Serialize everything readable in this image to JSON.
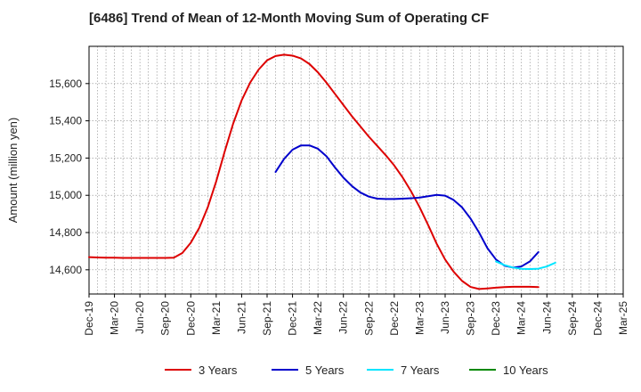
{
  "chart_data": {
    "type": "line",
    "title": "[6486]  Trend of Mean of 12-Month Moving Sum of Operating CF",
    "xlabel": "",
    "ylabel": "Amount (million yen)",
    "ylim": [
      14470,
      15800
    ],
    "y_ticks": [
      14600,
      14800,
      15000,
      15200,
      15400,
      15600
    ],
    "y_tick_labels": [
      "14,600",
      "14,800",
      "15,000",
      "15,200",
      "15,400",
      "15,600"
    ],
    "x_tick_labels": [
      "Dec-19",
      "Mar-20",
      "Jun-20",
      "Sep-20",
      "Dec-20",
      "Mar-21",
      "Jun-21",
      "Sep-21",
      "Dec-21",
      "Mar-22",
      "Jun-22",
      "Sep-22",
      "Dec-22",
      "Mar-23",
      "Jun-23",
      "Sep-23",
      "Dec-23",
      "Mar-24",
      "Jun-24",
      "Sep-24",
      "Dec-24",
      "Mar-25"
    ],
    "x_count": 64,
    "grid": true,
    "legend_position": "bottom",
    "series": [
      {
        "name": "3 Years",
        "color": "#dd0000",
        "start_index": 0,
        "values": [
          14668,
          14666,
          14665,
          14665,
          14664,
          14664,
          14664,
          14664,
          14664,
          14664,
          14665,
          14690,
          14745,
          14825,
          14935,
          15075,
          15235,
          15385,
          15510,
          15605,
          15675,
          15725,
          15748,
          15755,
          15750,
          15735,
          15705,
          15660,
          15605,
          15545,
          15485,
          15425,
          15370,
          15315,
          15265,
          15215,
          15160,
          15095,
          15020,
          14935,
          14840,
          14740,
          14655,
          14590,
          14540,
          14508,
          14497,
          14500,
          14504,
          14507,
          14509,
          14509,
          14509,
          14507
        ]
      },
      {
        "name": "5 Years",
        "color": "#0000cc",
        "start_index": 22,
        "values": [
          15125,
          15195,
          15245,
          15268,
          15268,
          15250,
          15210,
          15150,
          15095,
          15050,
          15015,
          14993,
          14982,
          14980,
          14980,
          14982,
          14984,
          14988,
          14995,
          15002,
          14998,
          14975,
          14935,
          14875,
          14800,
          14715,
          14655,
          14622,
          14612,
          14618,
          14645,
          14695
        ]
      },
      {
        "name": "7 Years",
        "color": "#00e5ff",
        "start_index": 48,
        "values": [
          14645,
          14625,
          14612,
          14605,
          14604,
          14606,
          14618,
          14638
        ]
      },
      {
        "name": "10 Years",
        "color": "#008800",
        "start_index": 0,
        "values": []
      }
    ]
  }
}
